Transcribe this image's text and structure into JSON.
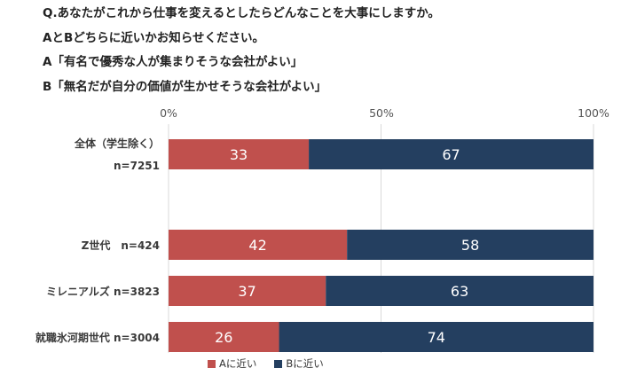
{
  "question": {
    "lines": [
      "Q.あなたがこれから仕事を変えるとしたらどんなことを大事にしますか。",
      "AとBどちらに近いかお知らせください。",
      "A「有名で優秀な人が集まりそうな会社がよい」",
      "B「無名だが自分の価値が生かせそうな会社がよい」"
    ]
  },
  "chart_data": {
    "type": "bar",
    "orientation": "horizontal",
    "stacked": true,
    "percent": true,
    "categories": [
      {
        "line1": "全体（学生除く）",
        "line2": "n=7251"
      },
      {
        "line1": "Z世代　n=424",
        "line2": ""
      },
      {
        "line1": "ミレニアルズ n=3823",
        "line2": ""
      },
      {
        "line1": "就職氷河期世代 n=3004",
        "line2": ""
      }
    ],
    "series": [
      {
        "name": "Aに近い",
        "color": "#c0504d",
        "values": [
          33,
          42,
          37,
          26
        ]
      },
      {
        "name": "Bに近い",
        "color": "#243f60",
        "values": [
          67,
          58,
          63,
          74
        ]
      }
    ],
    "xlim": [
      0,
      100
    ],
    "xticks": [
      "0%",
      "50%",
      "100%"
    ],
    "grid": true,
    "legend_position": "bottom"
  }
}
